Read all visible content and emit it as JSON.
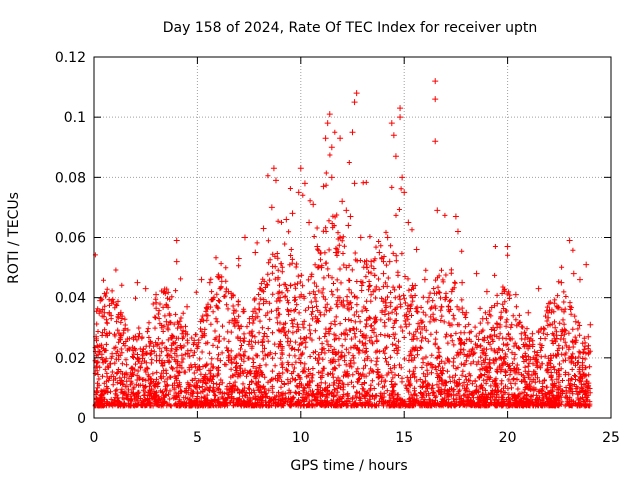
{
  "chart_data": {
    "type": "scatter",
    "title": "Day 158 of 2024, Rate Of TEC Index for receiver uptn",
    "xlabel": "GPS time / hours",
    "ylabel": "ROTI / TECUs",
    "xlim": [
      0,
      25
    ],
    "ylim": [
      0,
      0.12
    ],
    "x_ticks": [
      0,
      5,
      10,
      15,
      20,
      25
    ],
    "y_ticks": [
      0,
      0.02,
      0.04,
      0.06,
      0.08,
      0.1,
      0.12
    ],
    "x_tick_labels": [
      "0",
      "5",
      "10",
      "15",
      "20",
      "25"
    ],
    "y_tick_labels": [
      "0",
      "0.02",
      "0.04",
      "0.06",
      "0.08",
      "0.1",
      "0.12"
    ],
    "grid": true,
    "marker": "+",
    "series_color": "#ff0000",
    "series": [
      {
        "name": "ROTI",
        "points": [
          [
            0.3,
            0.039
          ],
          [
            0.5,
            0.035
          ],
          [
            1.3,
            0.035
          ],
          [
            2.1,
            0.045
          ],
          [
            2.5,
            0.043
          ],
          [
            3.0,
            0.041
          ],
          [
            3.5,
            0.032
          ],
          [
            4.0,
            0.059
          ],
          [
            4.0,
            0.052
          ],
          [
            4.5,
            0.037
          ],
          [
            5.2,
            0.046
          ],
          [
            5.6,
            0.045
          ],
          [
            6.0,
            0.047
          ],
          [
            6.5,
            0.042
          ],
          [
            7.0,
            0.053
          ],
          [
            7.3,
            0.06
          ],
          [
            7.8,
            0.055
          ],
          [
            8.2,
            0.063
          ],
          [
            8.6,
            0.07
          ],
          [
            8.7,
            0.083
          ],
          [
            8.8,
            0.079
          ],
          [
            9.3,
            0.066
          ],
          [
            9.6,
            0.068
          ],
          [
            9.9,
            0.075
          ],
          [
            10.0,
            0.083
          ],
          [
            10.2,
            0.078
          ],
          [
            10.4,
            0.065
          ],
          [
            10.6,
            0.071
          ],
          [
            10.8,
            0.057
          ],
          [
            11.1,
            0.077
          ],
          [
            11.2,
            0.093
          ],
          [
            11.3,
            0.098
          ],
          [
            11.4,
            0.101
          ],
          [
            11.5,
            0.09
          ],
          [
            11.5,
            0.08
          ],
          [
            11.9,
            0.093
          ],
          [
            12.0,
            0.072
          ],
          [
            12.2,
            0.069
          ],
          [
            12.3,
            0.064
          ],
          [
            12.4,
            0.067
          ],
          [
            12.5,
            0.095
          ],
          [
            12.6,
            0.105
          ],
          [
            12.7,
            0.108
          ],
          [
            12.6,
            0.078
          ],
          [
            12.9,
            0.06
          ],
          [
            13.4,
            0.052
          ],
          [
            13.8,
            0.055
          ],
          [
            14.2,
            0.06
          ],
          [
            14.4,
            0.098
          ],
          [
            14.5,
            0.094
          ],
          [
            14.6,
            0.087
          ],
          [
            14.8,
            0.103
          ],
          [
            14.8,
            0.1
          ],
          [
            14.9,
            0.08
          ],
          [
            15.0,
            0.075
          ],
          [
            15.2,
            0.065
          ],
          [
            15.6,
            0.056
          ],
          [
            16.0,
            0.046
          ],
          [
            16.5,
            0.112
          ],
          [
            16.5,
            0.106
          ],
          [
            16.5,
            0.092
          ],
          [
            16.6,
            0.069
          ],
          [
            17.0,
            0.04
          ],
          [
            17.5,
            0.067
          ],
          [
            17.6,
            0.062
          ],
          [
            17.8,
            0.045
          ],
          [
            18.5,
            0.048
          ],
          [
            19.0,
            0.042
          ],
          [
            19.5,
            0.038
          ],
          [
            20.0,
            0.057
          ],
          [
            20.4,
            0.041
          ],
          [
            21.0,
            0.035
          ],
          [
            21.5,
            0.043
          ],
          [
            22.0,
            0.038
          ],
          [
            22.6,
            0.045
          ],
          [
            23.0,
            0.059
          ],
          [
            23.2,
            0.048
          ],
          [
            23.5,
            0.046
          ],
          [
            23.8,
            0.051
          ],
          [
            24.0,
            0.031
          ],
          [
            0.1,
            0.027
          ],
          [
            0.2,
            0.022
          ],
          [
            0.8,
            0.018
          ],
          [
            1.5,
            0.024
          ],
          [
            2.2,
            0.028
          ],
          [
            3.3,
            0.025
          ],
          [
            4.2,
            0.03
          ],
          [
            5.5,
            0.034
          ],
          [
            6.8,
            0.033
          ],
          [
            8.0,
            0.036
          ],
          [
            9.0,
            0.04
          ],
          [
            9.5,
            0.044
          ],
          [
            10.5,
            0.047
          ],
          [
            11.0,
            0.05
          ],
          [
            11.7,
            0.055
          ],
          [
            12.2,
            0.05
          ],
          [
            13.0,
            0.045
          ],
          [
            13.5,
            0.042
          ],
          [
            14.0,
            0.048
          ],
          [
            14.3,
            0.052
          ],
          [
            15.4,
            0.044
          ],
          [
            16.2,
            0.04
          ],
          [
            16.8,
            0.037
          ],
          [
            17.3,
            0.042
          ],
          [
            18.0,
            0.035
          ],
          [
            18.8,
            0.033
          ],
          [
            19.3,
            0.03
          ],
          [
            20.2,
            0.031
          ],
          [
            21.2,
            0.028
          ],
          [
            22.3,
            0.03
          ],
          [
            23.3,
            0.032
          ],
          [
            23.9,
            0.027
          ]
        ]
      }
    ]
  }
}
